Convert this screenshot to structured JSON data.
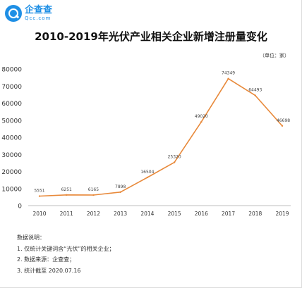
{
  "logo": {
    "name": "企查查",
    "domain": "Qcc.com"
  },
  "unit_note": "（单位：家）",
  "notes": {
    "heading": "数据说明：",
    "items": [
      "1. 仅统计关键词含“光伏”的相关企业；",
      "2. 数据来源：企查查；",
      "3. 统计截至 2020.07.16"
    ]
  },
  "colors": {
    "line": "#e8893a",
    "axis": "#bfbfbf",
    "brand": "#1f8fe5"
  },
  "chart_data": {
    "type": "line",
    "title": "2010-2019年光伏产业相关企业新增注册量变化",
    "xlabel": "",
    "ylabel": "",
    "categories": [
      "2010",
      "2011",
      "2012",
      "2013",
      "2014",
      "2015",
      "2016",
      "2017",
      "2018",
      "2019"
    ],
    "series": [
      {
        "values": [
          5551,
          6251,
          6165,
          7898,
          16504,
          25320,
          49020,
          74349,
          64493,
          46698
        ]
      }
    ],
    "data_labels": [
      "5551",
      "6251",
      "6165",
      "7898",
      "16504",
      "25320",
      "49020",
      "74349",
      "64493",
      "46698"
    ],
    "y_ticks": [
      0,
      10000,
      20000,
      30000,
      40000,
      50000,
      60000,
      70000,
      80000
    ],
    "ylim": [
      0,
      80000
    ],
    "grid": false,
    "legend": "none"
  }
}
